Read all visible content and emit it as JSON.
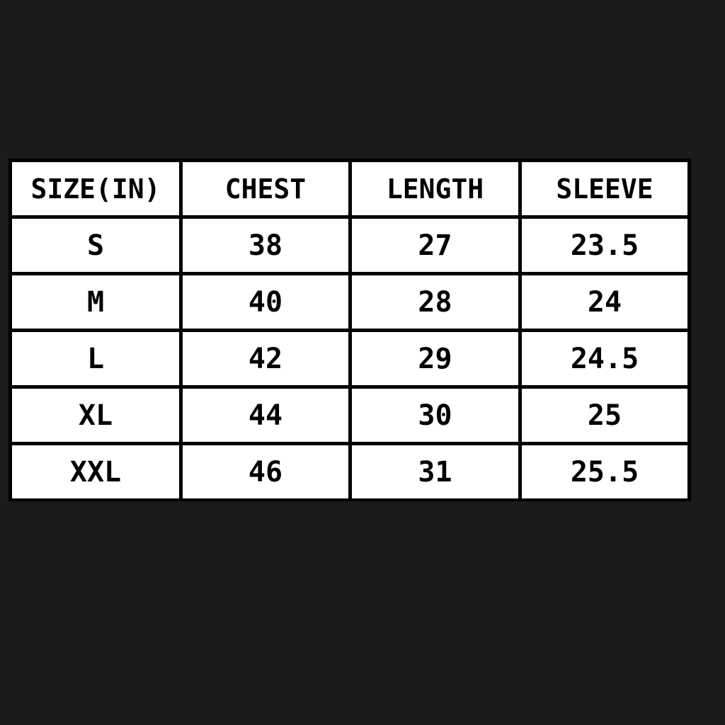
{
  "table": {
    "header": [
      "SIZE(IN)",
      "CHEST",
      "LENGTH",
      "SLEEVE"
    ],
    "rows": [
      [
        "S",
        "38",
        "27",
        "23.5"
      ],
      [
        "M",
        "40",
        "28",
        "24"
      ],
      [
        "L",
        "42",
        "29",
        "24.5"
      ],
      [
        "XL",
        "44",
        "30",
        "25"
      ],
      [
        "XXL",
        "46",
        "31",
        "25.5"
      ]
    ]
  }
}
